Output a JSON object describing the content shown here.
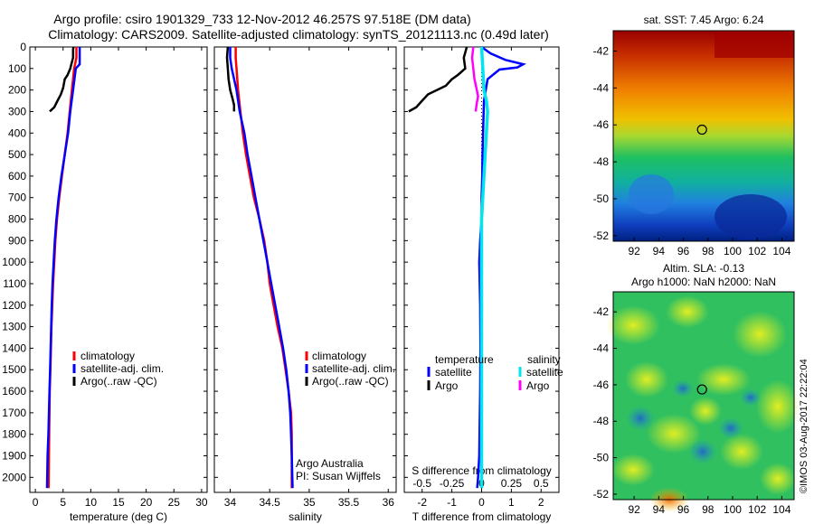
{
  "title": {
    "line1": "Argo profile: csiro 1901329_733 12-Nov-2012 46.257S 97.518E (DM data)",
    "line2": "Climatology: CARS2009. Satellite-adjusted climatology: synTS_20121113.nc (0.49d later)"
  },
  "stamp": "©IMOS 03-Aug-2017 22:22:04",
  "colors": {
    "climatology": "#ff0000",
    "satellite": "#0000ff",
    "argo": "#000000",
    "salinity_satellite": "#00e5ee",
    "salinity_argo": "#ff00ff"
  },
  "chart_data": [
    {
      "id": "temperature",
      "type": "line",
      "xlabel": "temperature (deg C)",
      "ylabel": "",
      "xlim": [
        -1,
        31
      ],
      "ylim": [
        2070,
        0
      ],
      "xticks": [
        0,
        5,
        10,
        15,
        20,
        25,
        30
      ],
      "xticklabels": [
        "0",
        "5",
        "10",
        "15",
        "20",
        "25",
        "30"
      ],
      "yticks": [
        0,
        100,
        200,
        300,
        400,
        500,
        600,
        700,
        800,
        900,
        1000,
        1100,
        1200,
        1300,
        1400,
        1500,
        1600,
        1700,
        1800,
        1900,
        2000
      ],
      "yticklabels": [
        "0",
        "100",
        "200",
        "300",
        "400",
        "500",
        "600",
        "700",
        "800",
        "900",
        "1000",
        "1100",
        "1200",
        "1300",
        "1400",
        "1500",
        "1600",
        "1700",
        "1800",
        "1900",
        "2000"
      ],
      "legend": {
        "position": "lower-middle",
        "entries": [
          "climatology",
          "satellite-adj. clim.",
          "Argo(..raw -QC)"
        ]
      },
      "series": [
        {
          "name": "climatology",
          "color": "#ff0000",
          "x": [
            7.4,
            7.4,
            7.0,
            6.6,
            6.2,
            5.8,
            5.3,
            4.8,
            4.3,
            3.9,
            3.6,
            3.4,
            3.2,
            3.05,
            2.9,
            2.8,
            2.7,
            2.6,
            2.55,
            2.5,
            2.45,
            2.4
          ],
          "y": [
            0,
            50,
            100,
            200,
            300,
            400,
            500,
            600,
            700,
            800,
            900,
            1000,
            1100,
            1200,
            1300,
            1400,
            1500,
            1600,
            1700,
            1800,
            1900,
            2050
          ]
        },
        {
          "name": "satellite-adj. clim.",
          "color": "#0000ff",
          "x": [
            8.0,
            8.0,
            7.3,
            6.8,
            6.3,
            5.9,
            5.3,
            4.7,
            4.2,
            3.8,
            3.5,
            3.3,
            3.1,
            2.95,
            2.85,
            2.75,
            2.65,
            2.55,
            2.45,
            2.35,
            2.2,
            2.1
          ],
          "y": [
            0,
            80,
            100,
            200,
            300,
            400,
            500,
            600,
            700,
            800,
            900,
            1000,
            1100,
            1200,
            1300,
            1400,
            1500,
            1600,
            1700,
            1800,
            1900,
            2050
          ]
        },
        {
          "name": "Argo(..raw -QC)",
          "color": "#000000",
          "x": [
            6.9,
            6.8,
            6.8,
            6.5,
            6.3,
            5.8,
            5.3,
            5.0,
            4.6,
            4.0,
            3.4,
            2.6
          ],
          "y": [
            0,
            10,
            50,
            80,
            100,
            130,
            150,
            190,
            220,
            250,
            280,
            300
          ]
        }
      ]
    },
    {
      "id": "salinity",
      "type": "line",
      "xlabel": "salinity",
      "ylabel": "",
      "xlim": [
        33.8,
        36.1
      ],
      "ylim": [
        2070,
        0
      ],
      "xticks": [
        34,
        34.5,
        35,
        35.5,
        36
      ],
      "xticklabels": [
        "34",
        "34.5",
        "35",
        "35.5",
        "36"
      ],
      "legend": {
        "position": "lower-right",
        "entries": [
          "climatology",
          "satellite-adj. clim.",
          "Argo(..raw -QC)"
        ]
      },
      "annotation": [
        "Argo Australia",
        "PI: Susan Wijffels"
      ],
      "series": [
        {
          "name": "climatology",
          "color": "#ff0000",
          "x": [
            34.07,
            34.07,
            34.08,
            34.1,
            34.13,
            34.16,
            34.2,
            34.25,
            34.3,
            34.37,
            34.43,
            34.47,
            34.5,
            34.55,
            34.6,
            34.66,
            34.7,
            34.74,
            34.77,
            34.78,
            34.78,
            34.78
          ],
          "y": [
            0,
            50,
            100,
            200,
            300,
            400,
            500,
            600,
            700,
            800,
            900,
            1000,
            1100,
            1200,
            1300,
            1400,
            1500,
            1600,
            1700,
            1800,
            1900,
            2050
          ]
        },
        {
          "name": "satellite-adj. clim.",
          "color": "#0000ff",
          "x": [
            34.0,
            34.0,
            34.02,
            34.08,
            34.12,
            34.18,
            34.22,
            34.27,
            34.32,
            34.37,
            34.42,
            34.47,
            34.52,
            34.57,
            34.62,
            34.67,
            34.71,
            34.74,
            34.76,
            34.77,
            34.78,
            34.79
          ],
          "y": [
            0,
            50,
            100,
            200,
            300,
            400,
            500,
            600,
            700,
            800,
            900,
            1000,
            1100,
            1200,
            1300,
            1400,
            1500,
            1600,
            1700,
            1800,
            1900,
            2050
          ]
        },
        {
          "name": "Argo(..raw -QC)",
          "color": "#000000",
          "x": [
            33.97,
            33.96,
            33.97,
            33.98,
            34.0,
            34.03,
            34.05,
            34.05
          ],
          "y": [
            0,
            50,
            100,
            150,
            200,
            240,
            270,
            300
          ]
        }
      ]
    },
    {
      "id": "differences",
      "type": "line",
      "xlabel": "T difference from climatology",
      "ylabel": "",
      "x2label": "S difference from climatology",
      "xlim": [
        -2.6,
        2.6
      ],
      "ylim": [
        2070,
        0
      ],
      "xticks": [
        -2,
        -1,
        0,
        1,
        2
      ],
      "xticklabels": [
        "-2",
        "-1",
        "0",
        "1",
        "2"
      ],
      "x2ticks": [
        -0.5,
        -0.25,
        0,
        0.25,
        0.5
      ],
      "x2ticklabels": [
        "-0.5",
        "-0.25",
        "0",
        "0.25",
        "0.5"
      ],
      "x2lim": [
        -0.65,
        0.65
      ],
      "legend": {
        "position": "lower-middle",
        "entries": [
          "temperature",
          "satellite",
          "Argo",
          "salinity",
          "satellite",
          "Argo"
        ]
      },
      "series": [
        {
          "name": "temperature satellite",
          "color": "#0000ff",
          "x": [
            0.0,
            0.3,
            0.8,
            1.4,
            1.2,
            0.6,
            0.2,
            0.08,
            0.05,
            0.03,
            0.02,
            0.0,
            0.0,
            -0.05,
            -0.08,
            -0.05,
            -0.04,
            -0.05,
            -0.07,
            -0.08,
            -0.1,
            -0.12,
            -0.15
          ],
          "y": [
            0,
            30,
            60,
            80,
            95,
            105,
            150,
            250,
            400,
            500,
            600,
            700,
            800,
            900,
            1000,
            1200,
            1400,
            1600,
            1800,
            1900,
            1950,
            2000,
            2050
          ]
        },
        {
          "name": "temperature Argo",
          "color": "#000000",
          "x": [
            -0.5,
            -0.6,
            -0.55,
            -0.8,
            -1.0,
            -1.2,
            -1.5,
            -1.8,
            -2.0,
            -2.2,
            -2.45
          ],
          "y": [
            0,
            50,
            100,
            130,
            150,
            180,
            200,
            220,
            250,
            280,
            300
          ]
        },
        {
          "name": "salinity satellite",
          "color": "#00e5ee",
          "x": [
            0.0,
            0.01,
            0.02,
            0.04,
            0.05,
            0.04,
            0.03,
            0.02,
            0.01,
            0.0,
            0.0,
            0.0,
            0.0,
            0.0,
            0.0,
            0.0,
            0.0,
            0.0
          ],
          "y": [
            0,
            100,
            200,
            250,
            300,
            400,
            500,
            600,
            700,
            800,
            1000,
            1200,
            1400,
            1600,
            1800,
            1900,
            2000,
            2050
          ]
        },
        {
          "name": "salinity Argo",
          "color": "#ff00ff",
          "x": [
            -0.07,
            -0.08,
            -0.07,
            -0.06,
            -0.04,
            -0.03,
            -0.04,
            -0.05
          ],
          "y": [
            0,
            50,
            100,
            150,
            200,
            230,
            260,
            300
          ]
        }
      ]
    },
    {
      "id": "sst_map",
      "type": "heatmap",
      "title": "sat. SST: 7.45 Argo: 6.24",
      "xlim": [
        90.3,
        105.0
      ],
      "ylim": [
        -52.3,
        -40.9
      ],
      "xticks": [
        92,
        94,
        96,
        98,
        100,
        102,
        104
      ],
      "xticklabels": [
        "92",
        "94",
        "96",
        "98",
        "100",
        "102",
        "104"
      ],
      "yticks": [
        -42,
        -44,
        -46,
        -48,
        -50,
        -52
      ],
      "yticklabels": [
        "-42",
        "-44",
        "-46",
        "-48",
        "-50",
        "-52"
      ],
      "marker": {
        "lon": 97.518,
        "lat": -46.257
      }
    },
    {
      "id": "sla_map",
      "type": "heatmap",
      "title": "Altim. SLA: -0.13",
      "subtitle": "Argo h1000: NaN h2000: NaN",
      "xlim": [
        90.3,
        105.0
      ],
      "ylim": [
        -52.3,
        -40.9
      ],
      "xticks": [
        92,
        94,
        96,
        98,
        100,
        102,
        104
      ],
      "xticklabels": [
        "92",
        "94",
        "96",
        "98",
        "100",
        "102",
        "104"
      ],
      "yticks": [
        -42,
        -44,
        -46,
        -48,
        -50,
        -52
      ],
      "yticklabels": [
        "-42",
        "-44",
        "-46",
        "-48",
        "-50",
        "-52"
      ],
      "marker": {
        "lon": 97.518,
        "lat": -46.257
      }
    }
  ]
}
